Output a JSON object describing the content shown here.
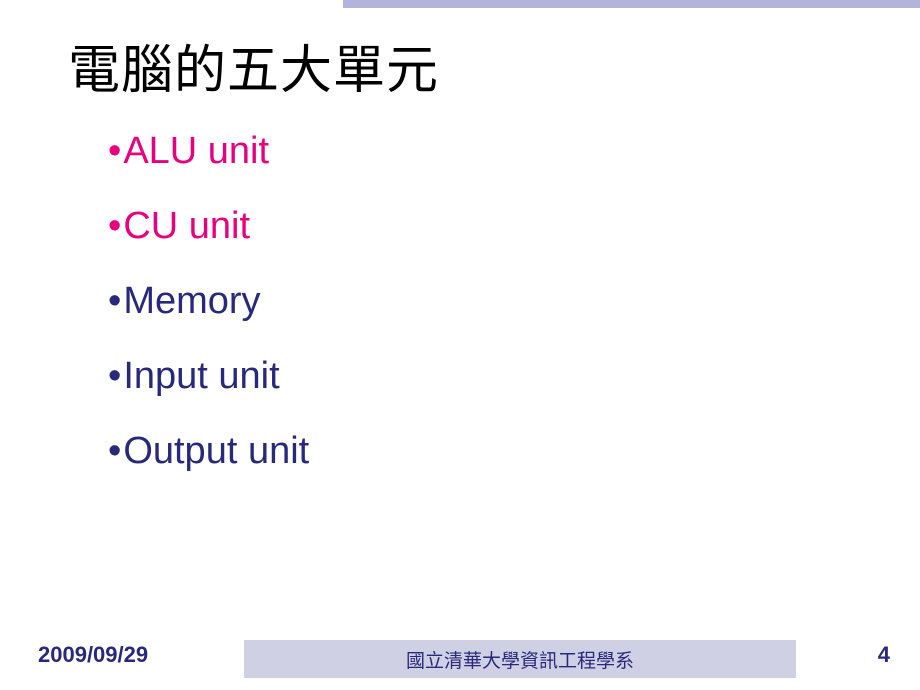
{
  "slide": {
    "title": "電腦的五大單元",
    "bullets": [
      {
        "text": "ALU unit",
        "style": "highlight"
      },
      {
        "text": "CU unit",
        "style": "highlight"
      },
      {
        "text": "Memory",
        "style": "normal"
      },
      {
        "text": "Input unit",
        "style": "normal"
      },
      {
        "text": "Output unit",
        "style": "normal"
      }
    ]
  },
  "footer": {
    "date": "2009/09/29",
    "organization": "國立清華大學資訊工程學系",
    "page_number": "4"
  },
  "colors": {
    "highlight": "#e6007e",
    "normal": "#29297b",
    "top_bar": "#b3b3db",
    "footer_bar": "#d0d0e5",
    "title": "#000000",
    "background": "#ffffff"
  }
}
